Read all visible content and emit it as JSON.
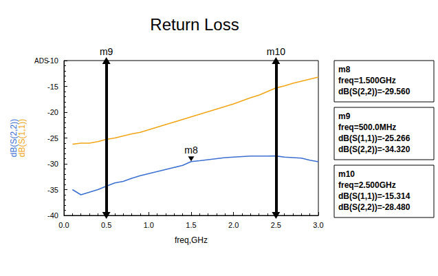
{
  "chart_data": {
    "type": "line",
    "title": "Return Loss",
    "corner_text": "ADS",
    "xlabel": "freq,GHz",
    "ylabel": [
      "dB(S(2,2))",
      "dB(S(1,1))"
    ],
    "x": [
      0.1,
      0.2,
      0.3,
      0.4,
      0.5,
      0.6,
      0.7,
      0.8,
      0.9,
      1.0,
      1.1,
      1.2,
      1.3,
      1.4,
      1.5,
      1.6,
      1.7,
      1.8,
      1.9,
      2.0,
      2.1,
      2.2,
      2.3,
      2.4,
      2.5,
      2.6,
      2.7,
      2.8,
      2.9,
      3.0
    ],
    "series": [
      {
        "name": "dB(S(1,1))",
        "color": "#f2a516",
        "values": [
          -26.2,
          -26.0,
          -26.0,
          -25.7,
          -25.266,
          -25.0,
          -24.6,
          -24.2,
          -23.9,
          -23.4,
          -22.9,
          -22.4,
          -21.9,
          -21.4,
          -20.9,
          -20.4,
          -19.9,
          -19.4,
          -18.9,
          -18.4,
          -17.8,
          -17.2,
          -16.7,
          -16.0,
          -15.314,
          -14.9,
          -14.4,
          -14.0,
          -13.6,
          -13.2
        ]
      },
      {
        "name": "dB(S(2,2))",
        "color": "#3b6fd1",
        "values": [
          -35.0,
          -36.0,
          -35.5,
          -35.0,
          -34.32,
          -33.7,
          -33.4,
          -32.8,
          -32.3,
          -31.9,
          -31.5,
          -31.1,
          -30.7,
          -30.3,
          -29.56,
          -29.4,
          -29.2,
          -29.0,
          -28.8,
          -28.7,
          -28.6,
          -28.5,
          -28.5,
          -28.5,
          -28.48,
          -28.7,
          -28.8,
          -28.9,
          -29.3,
          -29.6
        ]
      }
    ],
    "xlim": [
      0,
      3
    ],
    "xticks": [
      {
        "value": 0,
        "label": "0.0"
      },
      0.5,
      {
        "value": 1,
        "label": "1.0"
      },
      1.5,
      {
        "value": 2,
        "label": "2.0"
      },
      2.5,
      {
        "value": 3,
        "label": "3.0"
      }
    ],
    "ylim": [
      -40,
      -10
    ],
    "yticks": [
      -40,
      -35,
      -30,
      -25,
      -20,
      -15,
      -10
    ],
    "grid": false,
    "markers": [
      {
        "label": "m8",
        "x": 1.5,
        "y": -29.56,
        "series": "dB(S(2,2))",
        "readout": [
          "freq=1.500GHz",
          "dB(S(2,2))=-29.560"
        ]
      },
      {
        "label": "m9",
        "x": 0.5,
        "readout": [
          "freq=500.0MHz",
          "dB(S(1,1))=-25.266",
          "dB(S(2,2))=-34.320"
        ]
      },
      {
        "label": "m10",
        "x": 2.5,
        "readout": [
          "freq=2.500GHz",
          "dB(S(1,1))=-15.314",
          "dB(S(2,2))=-28.480"
        ]
      }
    ]
  }
}
